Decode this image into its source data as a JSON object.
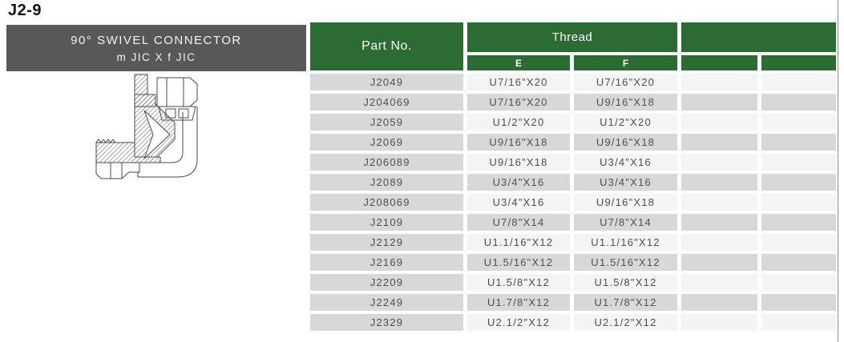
{
  "page": {
    "code": "J2-9"
  },
  "product": {
    "title_line1": "90° SWIVEL CONNECTOR",
    "title_line2": "m JIC X f JIC",
    "drawing": "90-degree-swivel-elbow-cutaway-drawing"
  },
  "table": {
    "headers": {
      "part_no": "Part No.",
      "thread": "Thread",
      "col_e": "E",
      "col_f": "F"
    },
    "rows": [
      {
        "part": "J2049",
        "e": "U7/16\"X20",
        "f": "U7/16\"X20"
      },
      {
        "part": "J204069",
        "e": "U7/16\"X20",
        "f": "U9/16\"X18"
      },
      {
        "part": "J2059",
        "e": "U1/2\"X20",
        "f": "U1/2\"X20"
      },
      {
        "part": "J2069",
        "e": "U9/16\"X18",
        "f": "U9/16\"X18"
      },
      {
        "part": "J206089",
        "e": "U9/16\"X18",
        "f": "U3/4\"X16"
      },
      {
        "part": "J2089",
        "e": "U3/4\"X16",
        "f": "U3/4\"X16"
      },
      {
        "part": "J208069",
        "e": "U3/4\"X16",
        "f": "U9/16\"X18"
      },
      {
        "part": "J2109",
        "e": "U7/8\"X14",
        "f": "U7/8\"X14"
      },
      {
        "part": "J2129",
        "e": "U1.1/16\"X12",
        "f": "U1.1/16\"X12"
      },
      {
        "part": "J2169",
        "e": "U1.5/16\"X12",
        "f": "U1.5/16\"X12"
      },
      {
        "part": "J2209",
        "e": "U1.5/8\"X12",
        "f": "U1.5/8\"X12"
      },
      {
        "part": "J2249",
        "e": "U1.7/8\"X12",
        "f": "U1.7/8\"X12"
      },
      {
        "part": "J2329",
        "e": "U2.1/2\"X12",
        "f": "U2.1/2\"X12"
      }
    ]
  },
  "colors": {
    "header_green": "#2d6b35",
    "banner_gray": "#58585a",
    "cell_gray": "#d8d8d8",
    "row_light": "#f4f4f4",
    "body_text": "#4f4f4f",
    "page_edge": "#8f8f8f"
  }
}
